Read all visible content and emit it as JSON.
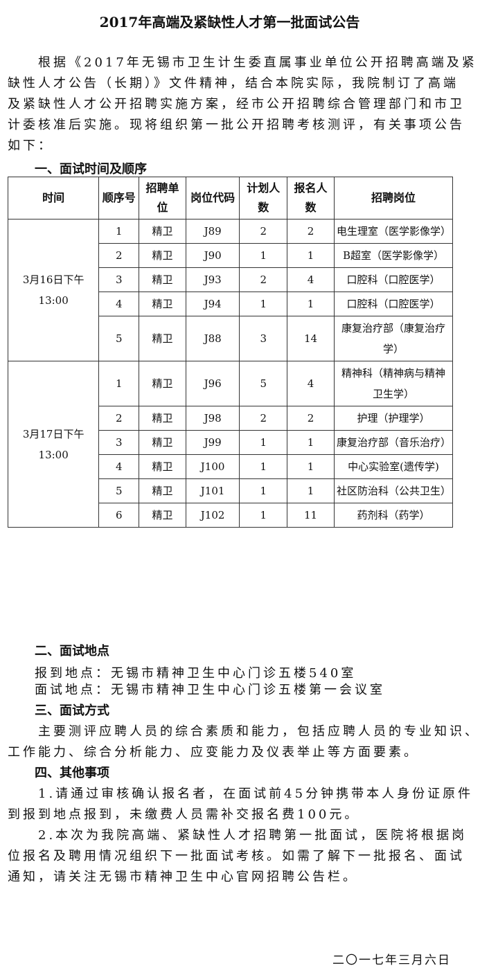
{
  "title": "2017年高端及紧缺性人才第一批面试公告",
  "intro_lines": [
    "　　根据《2017年无锡市卫生计生委直属事业单位公开招聘高端及紧",
    "缺性人才公告（长期）》文件精神，结合本院实际，我院制订了高端",
    "及紧缺性人才公开招聘实施方案，经市公开招聘综合管理部门和市卫",
    "计委核准后实施。现将组织第一批公开招聘考核测评，有关事项公告",
    "如下："
  ],
  "section1": "一、面试时间及顺序",
  "table": {
    "headers": [
      "时间",
      "顺序号",
      "招聘单位",
      "岗位代码",
      "计划人数",
      "报名人数",
      "招聘岗位"
    ],
    "groups": [
      {
        "time": "3月16日下午13:00",
        "rows": [
          [
            "1",
            "精卫",
            "J89",
            "2",
            "2",
            "电生理室（医学影像学）"
          ],
          [
            "2",
            "精卫",
            "J90",
            "1",
            "1",
            "B超室（医学影像学）"
          ],
          [
            "3",
            "精卫",
            "J93",
            "2",
            "4",
            "口腔科（口腔医学）"
          ],
          [
            "4",
            "精卫",
            "J94",
            "1",
            "1",
            "口腔科（口腔医学）"
          ],
          [
            "5",
            "精卫",
            "J88",
            "3",
            "14",
            "康复治疗部（康复治疗学）"
          ]
        ]
      },
      {
        "time": "3月17日下午13:00",
        "rows": [
          [
            "1",
            "精卫",
            "J96",
            "5",
            "4",
            "精神科（精神病与精神卫生学）"
          ],
          [
            "2",
            "精卫",
            "J98",
            "2",
            "2",
            "护理（护理学）"
          ],
          [
            "3",
            "精卫",
            "J99",
            "1",
            "1",
            "康复治疗部（音乐治疗）"
          ],
          [
            "4",
            "精卫",
            "J100",
            "1",
            "1",
            "中心实验室(遗传学)"
          ],
          [
            "5",
            "精卫",
            "J101",
            "1",
            "1",
            "社区防治科（公共卫生）"
          ],
          [
            "6",
            "精卫",
            "J102",
            "1",
            "11",
            "药剂科（药学）"
          ]
        ]
      }
    ]
  },
  "section2": "二、面试地点",
  "report_place": "报到地点：无锡市精神卫生中心门诊五楼540室",
  "interview_place": "面试地点：无锡市精神卫生中心门诊五楼第一会议室",
  "section3": "三、面试方式",
  "method_lines": [
    "　　主要测评应聘人员的综合素质和能力，包括应聘人员的专业知识、",
    "工作能力、综合分析能力、应变能力及仪表举止等方面要素。"
  ],
  "section4": "四、其他事项",
  "other_lines": [
    "　　1.请通过审核确认报名者，在面试前45分钟携带本人身份证原件",
    "到报到地点报到，未缴费人员需补交报名费100元。",
    "　　2.本次为我院高端、紧缺性人才招聘第一批面试，医院将根据岗",
    "位报名及聘用情况组织下一批面试考核。如需了解下一批报名、面试",
    "通知，请关注无锡市精神卫生中心官网招聘公告栏。"
  ],
  "date": "二〇一七年三月六日"
}
